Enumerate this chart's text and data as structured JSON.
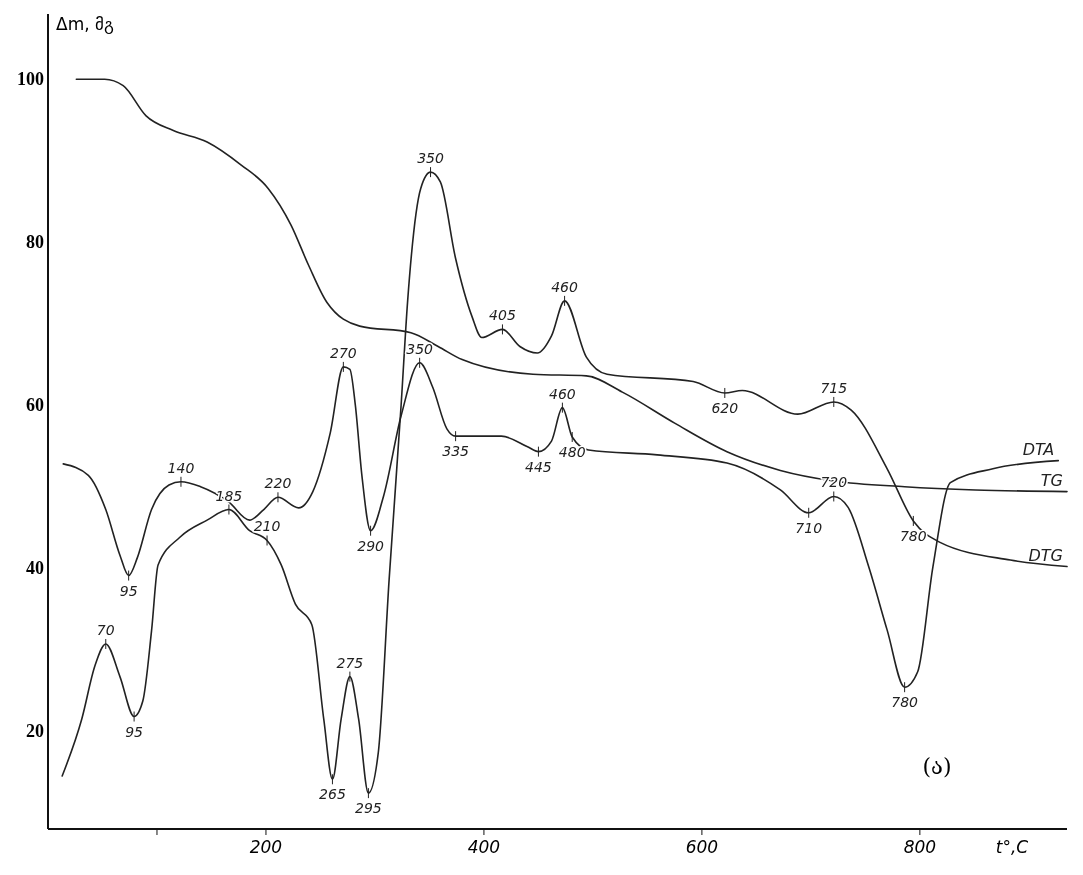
{
  "chart_data": {
    "type": "line",
    "xlabel": "t°,C",
    "ylabel": "Δm, მგ",
    "xlim": [
      0,
      935
    ],
    "ylim": [
      8,
      108
    ],
    "xticks": [
      {
        "value": 100,
        "label": null
      },
      200,
      400,
      600,
      800
    ],
    "yticks": [
      20,
      40,
      60,
      80,
      100
    ],
    "grid": false,
    "legend": false,
    "marker": "none",
    "line_style": "solid",
    "series": [
      {
        "name": "TG",
        "color": "#222222",
        "x": [
          26,
          52,
          69,
          90,
          115,
          146,
          177,
          202,
          223,
          239,
          256,
          286,
          333,
          358,
          380,
          445,
          494,
          527,
          575,
          623,
          672,
          721,
          786,
          851,
          935
        ],
        "values": [
          100,
          100,
          99.2,
          95.5,
          93.7,
          92.3,
          89.5,
          86.6,
          82.1,
          77.2,
          72.6,
          69.7,
          68.9,
          67.2,
          65.6,
          63.8,
          63.6,
          61.6,
          57.8,
          54.3,
          52.0,
          50.7,
          50.0,
          49.6,
          49.4
        ]
      },
      {
        "name": "DTA",
        "color": "#222222",
        "x": [
          14,
          37,
          53,
          66,
          74,
          82,
          95,
          111,
          122,
          140,
          166,
          185,
          198,
          211,
          230,
          243,
          259,
          271,
          277,
          282,
          288,
          296,
          308,
          324,
          341,
          353,
          366,
          374,
          416,
          440,
          450,
          462,
          472,
          481,
          496,
          559,
          623,
          672,
          698,
          721,
          734,
          753,
          770,
          786,
          798,
          812,
          828,
          867,
          927
        ],
        "values": [
          52.8,
          51.4,
          47.2,
          41.6,
          39.1,
          41.3,
          47.2,
          50.2,
          50.6,
          50.0,
          48.1,
          45.9,
          47.2,
          48.7,
          47.4,
          49.4,
          56.6,
          64.7,
          64.4,
          60.0,
          51.4,
          44.6,
          48.9,
          58.7,
          65.2,
          62.2,
          57.1,
          56.2,
          56.2,
          54.9,
          54.3,
          55.6,
          59.7,
          56.1,
          54.5,
          53.9,
          52.9,
          49.6,
          46.8,
          48.8,
          47.5,
          40.2,
          32.4,
          25.4,
          27.3,
          40.2,
          50.5,
          52.2,
          53.2
        ]
      },
      {
        "name": "DTG",
        "color": "#222222",
        "x": [
          13,
          31,
          43,
          53,
          66,
          79,
          87,
          95,
          101,
          121,
          146,
          166,
          185,
          201,
          214,
          227,
          242,
          253,
          261,
          269,
          277,
          285,
          294,
          303,
          313,
          324,
          330,
          342,
          351,
          360,
          374,
          389,
          398,
          417,
          433,
          449,
          462,
          474,
          494,
          513,
          592,
          621,
          637,
          688,
          721,
          737,
          770,
          794,
          818,
          883,
          935
        ],
        "values": [
          14.5,
          21.5,
          28.0,
          30.7,
          26.7,
          21.8,
          23.7,
          32.3,
          40.4,
          43.8,
          45.9,
          47.2,
          44.6,
          43.4,
          40.4,
          35.6,
          33.1,
          21.5,
          14.1,
          21.5,
          26.7,
          21.5,
          12.4,
          17.3,
          38.6,
          60.0,
          72.8,
          86.6,
          88.6,
          87.4,
          78.0,
          70.9,
          68.3,
          69.3,
          67.2,
          66.4,
          68.5,
          72.8,
          65.9,
          63.8,
          62.9,
          61.5,
          61.8,
          58.9,
          60.4,
          59.4,
          52.2,
          45.8,
          43.2,
          41.0,
          40.2
        ]
      }
    ],
    "annotations": [
      {
        "text": "70",
        "x": 53,
        "y": 30.7
      },
      {
        "text": "95",
        "x": 79,
        "y": 21.8
      },
      {
        "text": "185",
        "x": 166,
        "y": 47.2
      },
      {
        "text": "210",
        "x": 201,
        "y": 43.4
      },
      {
        "text": "265",
        "x": 261,
        "y": 14.1
      },
      {
        "text": "275",
        "x": 277,
        "y": 26.7
      },
      {
        "text": "295",
        "x": 294,
        "y": 12.4
      },
      {
        "text": "350",
        "x": 351,
        "y": 88.6
      },
      {
        "text": "405",
        "x": 417,
        "y": 69.3
      },
      {
        "text": "460",
        "x": 474,
        "y": 72.8
      },
      {
        "text": "620",
        "x": 621,
        "y": 61.5
      },
      {
        "text": "715",
        "x": 721,
        "y": 60.4
      },
      {
        "text": "780",
        "x": 794,
        "y": 45.8
      },
      {
        "text": "95",
        "x": 74,
        "y": 39.1
      },
      {
        "text": "140",
        "x": 122,
        "y": 50.6
      },
      {
        "text": "220",
        "x": 211,
        "y": 48.7
      },
      {
        "text": "270",
        "x": 271,
        "y": 64.7
      },
      {
        "text": "290",
        "x": 296,
        "y": 44.6
      },
      {
        "text": "350",
        "x": 341,
        "y": 65.2
      },
      {
        "text": "335",
        "x": 374,
        "y": 56.2
      },
      {
        "text": "445",
        "x": 450,
        "y": 54.3
      },
      {
        "text": "460",
        "x": 472,
        "y": 59.7
      },
      {
        "text": "480",
        "x": 481,
        "y": 56.1
      },
      {
        "text": "710",
        "x": 698,
        "y": 46.8
      },
      {
        "text": "720",
        "x": 721,
        "y": 48.8
      },
      {
        "text": "780",
        "x": 786,
        "y": 25.4
      },
      "(ა)"
    ]
  }
}
